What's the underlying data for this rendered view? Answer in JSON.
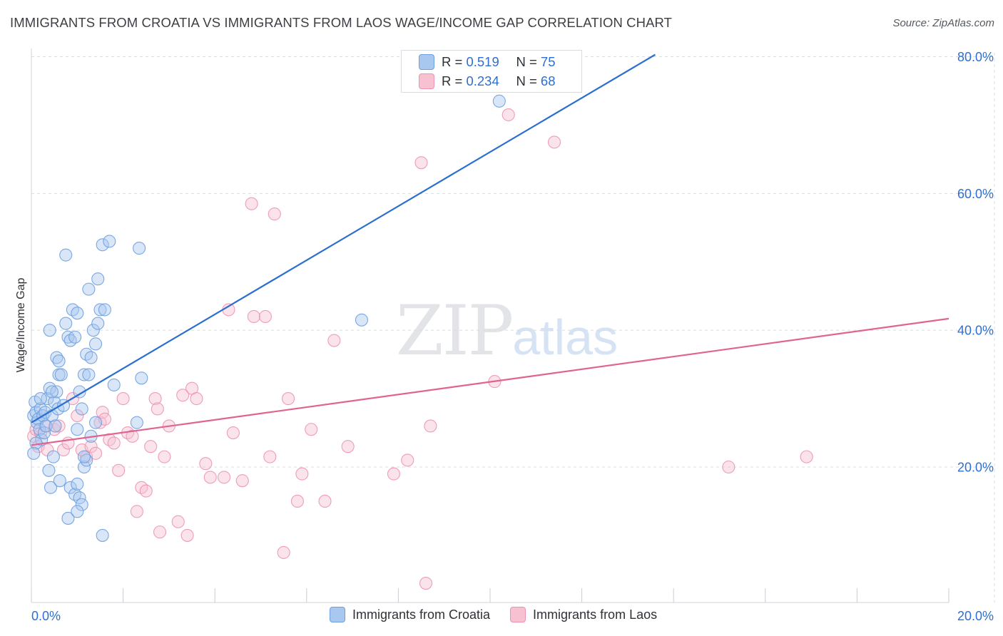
{
  "title": "IMMIGRANTS FROM CROATIA VS IMMIGRANTS FROM LAOS WAGE/INCOME GAP CORRELATION CHART",
  "source": "Source: ZipAtlas.com",
  "watermark": {
    "zip": "ZIP",
    "atlas": "atlas"
  },
  "legend": {
    "r_label": "R =",
    "n_label": "N =",
    "croatia": {
      "r": "0.519",
      "n": "75"
    },
    "laos": {
      "r": "0.234",
      "n": "68"
    }
  },
  "colors": {
    "croatia_fill": "#a9c8f0",
    "croatia_stroke": "#6d9fe0",
    "croatia_line": "#2a6fd0",
    "laos_fill": "#f7c1d2",
    "laos_stroke": "#ec93b0",
    "laos_line": "#e06392",
    "axis_label": "#2e6fd0",
    "grid": "#d9dce1"
  },
  "chart_data": {
    "type": "scatter",
    "title": "IMMIGRANTS FROM CROATIA VS IMMIGRANTS FROM LAOS WAGE/INCOME GAP CORRELATION CHART",
    "xlabel": "",
    "ylabel": "Wage/Income Gap",
    "xlim": [
      0,
      20
    ],
    "ylim": [
      0,
      82
    ],
    "x_ticks": [
      {
        "value": 0,
        "label": "0.0%"
      },
      {
        "value": 20,
        "label": "20.0%"
      }
    ],
    "y_ticks": [
      {
        "value": 20,
        "label": "20.0%"
      },
      {
        "value": 40,
        "label": "40.0%"
      },
      {
        "value": 60,
        "label": "60.0%"
      },
      {
        "value": 80,
        "label": "80.0%"
      }
    ],
    "grid": true,
    "legend_position": "bottom",
    "series": [
      {
        "name": "Immigrants from Croatia",
        "trend": {
          "x": [
            0.0,
            13.6
          ],
          "y": [
            26.5,
            80.3
          ]
        },
        "points": [
          [
            0.05,
            27.5
          ],
          [
            0.08,
            29.5
          ],
          [
            0.1,
            28
          ],
          [
            0.12,
            26.5
          ],
          [
            0.15,
            27
          ],
          [
            0.18,
            25.5
          ],
          [
            0.2,
            28.5
          ],
          [
            0.22,
            24
          ],
          [
            0.25,
            27.5
          ],
          [
            0.1,
            23.5
          ],
          [
            0.05,
            22
          ],
          [
            0.3,
            28
          ],
          [
            0.35,
            30
          ],
          [
            0.4,
            31.5
          ],
          [
            0.45,
            27.5
          ],
          [
            0.5,
            29.5
          ],
          [
            0.55,
            31
          ],
          [
            0.6,
            33.5
          ],
          [
            0.2,
            30
          ],
          [
            0.28,
            25
          ],
          [
            0.32,
            26
          ],
          [
            0.38,
            19.5
          ],
          [
            0.42,
            17
          ],
          [
            0.48,
            21.5
          ],
          [
            0.52,
            26
          ],
          [
            0.58,
            28.5
          ],
          [
            0.62,
            18
          ],
          [
            0.4,
            40
          ],
          [
            0.45,
            31
          ],
          [
            0.55,
            36
          ],
          [
            0.6,
            35.5
          ],
          [
            0.65,
            33.5
          ],
          [
            0.7,
            29
          ],
          [
            0.75,
            41
          ],
          [
            0.8,
            39
          ],
          [
            0.85,
            38.5
          ],
          [
            0.9,
            43
          ],
          [
            0.95,
            39
          ],
          [
            1.0,
            42.5
          ],
          [
            1.05,
            31
          ],
          [
            1.1,
            28.5
          ],
          [
            1.15,
            33.5
          ],
          [
            1.2,
            36.5
          ],
          [
            1.25,
            46
          ],
          [
            1.3,
            36
          ],
          [
            1.35,
            40
          ],
          [
            1.4,
            38
          ],
          [
            1.45,
            47.5
          ],
          [
            1.5,
            43
          ],
          [
            1.55,
            52.5
          ],
          [
            1.6,
            43
          ],
          [
            1.7,
            53
          ],
          [
            1.8,
            32
          ],
          [
            0.75,
            51
          ],
          [
            0.85,
            17
          ],
          [
            0.95,
            16
          ],
          [
            1.0,
            17.5
          ],
          [
            1.05,
            15.5
          ],
          [
            1.1,
            14.5
          ],
          [
            1.15,
            20
          ],
          [
            1.2,
            21
          ],
          [
            1.25,
            33.5
          ],
          [
            1.3,
            24.5
          ],
          [
            1.4,
            26.5
          ],
          [
            1.45,
            41
          ],
          [
            0.8,
            12.5
          ],
          [
            1.0,
            13.5
          ],
          [
            1.55,
            10
          ],
          [
            1.15,
            21.5
          ],
          [
            2.4,
            33
          ],
          [
            2.35,
            52
          ],
          [
            2.3,
            26.5
          ],
          [
            7.2,
            41.5
          ],
          [
            10.2,
            73.5
          ],
          [
            1.0,
            25.5
          ]
        ]
      },
      {
        "name": "Immigrants from Laos",
        "trend": {
          "x": [
            0.0,
            20.0
          ],
          "y": [
            23.2,
            41.7
          ]
        },
        "points": [
          [
            0.05,
            24.5
          ],
          [
            0.1,
            25.5
          ],
          [
            0.15,
            23
          ],
          [
            0.2,
            25
          ],
          [
            0.3,
            26
          ],
          [
            0.35,
            22.5
          ],
          [
            0.5,
            25.5
          ],
          [
            0.6,
            26
          ],
          [
            0.7,
            22.5
          ],
          [
            0.8,
            23.5
          ],
          [
            0.9,
            30
          ],
          [
            1.0,
            27.5
          ],
          [
            1.1,
            22.5
          ],
          [
            1.2,
            21.5
          ],
          [
            1.3,
            23
          ],
          [
            1.4,
            22
          ],
          [
            1.5,
            26.5
          ],
          [
            1.55,
            28
          ],
          [
            1.6,
            27
          ],
          [
            1.7,
            24
          ],
          [
            1.8,
            23.5
          ],
          [
            1.9,
            19.5
          ],
          [
            2.0,
            30
          ],
          [
            2.1,
            25
          ],
          [
            2.2,
            24.5
          ],
          [
            2.3,
            13.5
          ],
          [
            2.4,
            17
          ],
          [
            2.5,
            16.5
          ],
          [
            2.6,
            23
          ],
          [
            2.7,
            30
          ],
          [
            2.75,
            28.5
          ],
          [
            2.8,
            10.5
          ],
          [
            2.9,
            21.5
          ],
          [
            3.0,
            26
          ],
          [
            3.2,
            12
          ],
          [
            3.4,
            10
          ],
          [
            3.5,
            31.5
          ],
          [
            3.6,
            30
          ],
          [
            3.8,
            20.5
          ],
          [
            3.9,
            18.5
          ],
          [
            4.2,
            18.5
          ],
          [
            4.3,
            43
          ],
          [
            4.4,
            25
          ],
          [
            4.6,
            18
          ],
          [
            4.8,
            58.5
          ],
          [
            4.85,
            42
          ],
          [
            5.1,
            42
          ],
          [
            5.2,
            21.5
          ],
          [
            5.3,
            57
          ],
          [
            5.5,
            7.5
          ],
          [
            5.6,
            30
          ],
          [
            5.8,
            15
          ],
          [
            5.9,
            19
          ],
          [
            6.1,
            25.5
          ],
          [
            6.4,
            15
          ],
          [
            6.6,
            38.5
          ],
          [
            6.9,
            23
          ],
          [
            7.9,
            19
          ],
          [
            8.2,
            21
          ],
          [
            8.5,
            64.5
          ],
          [
            8.7,
            26
          ],
          [
            8.6,
            3
          ],
          [
            10.4,
            71.5
          ],
          [
            11.4,
            67.5
          ],
          [
            10.1,
            32.5
          ],
          [
            15.2,
            20
          ],
          [
            16.9,
            21.5
          ],
          [
            3.3,
            30.5
          ]
        ]
      }
    ]
  }
}
